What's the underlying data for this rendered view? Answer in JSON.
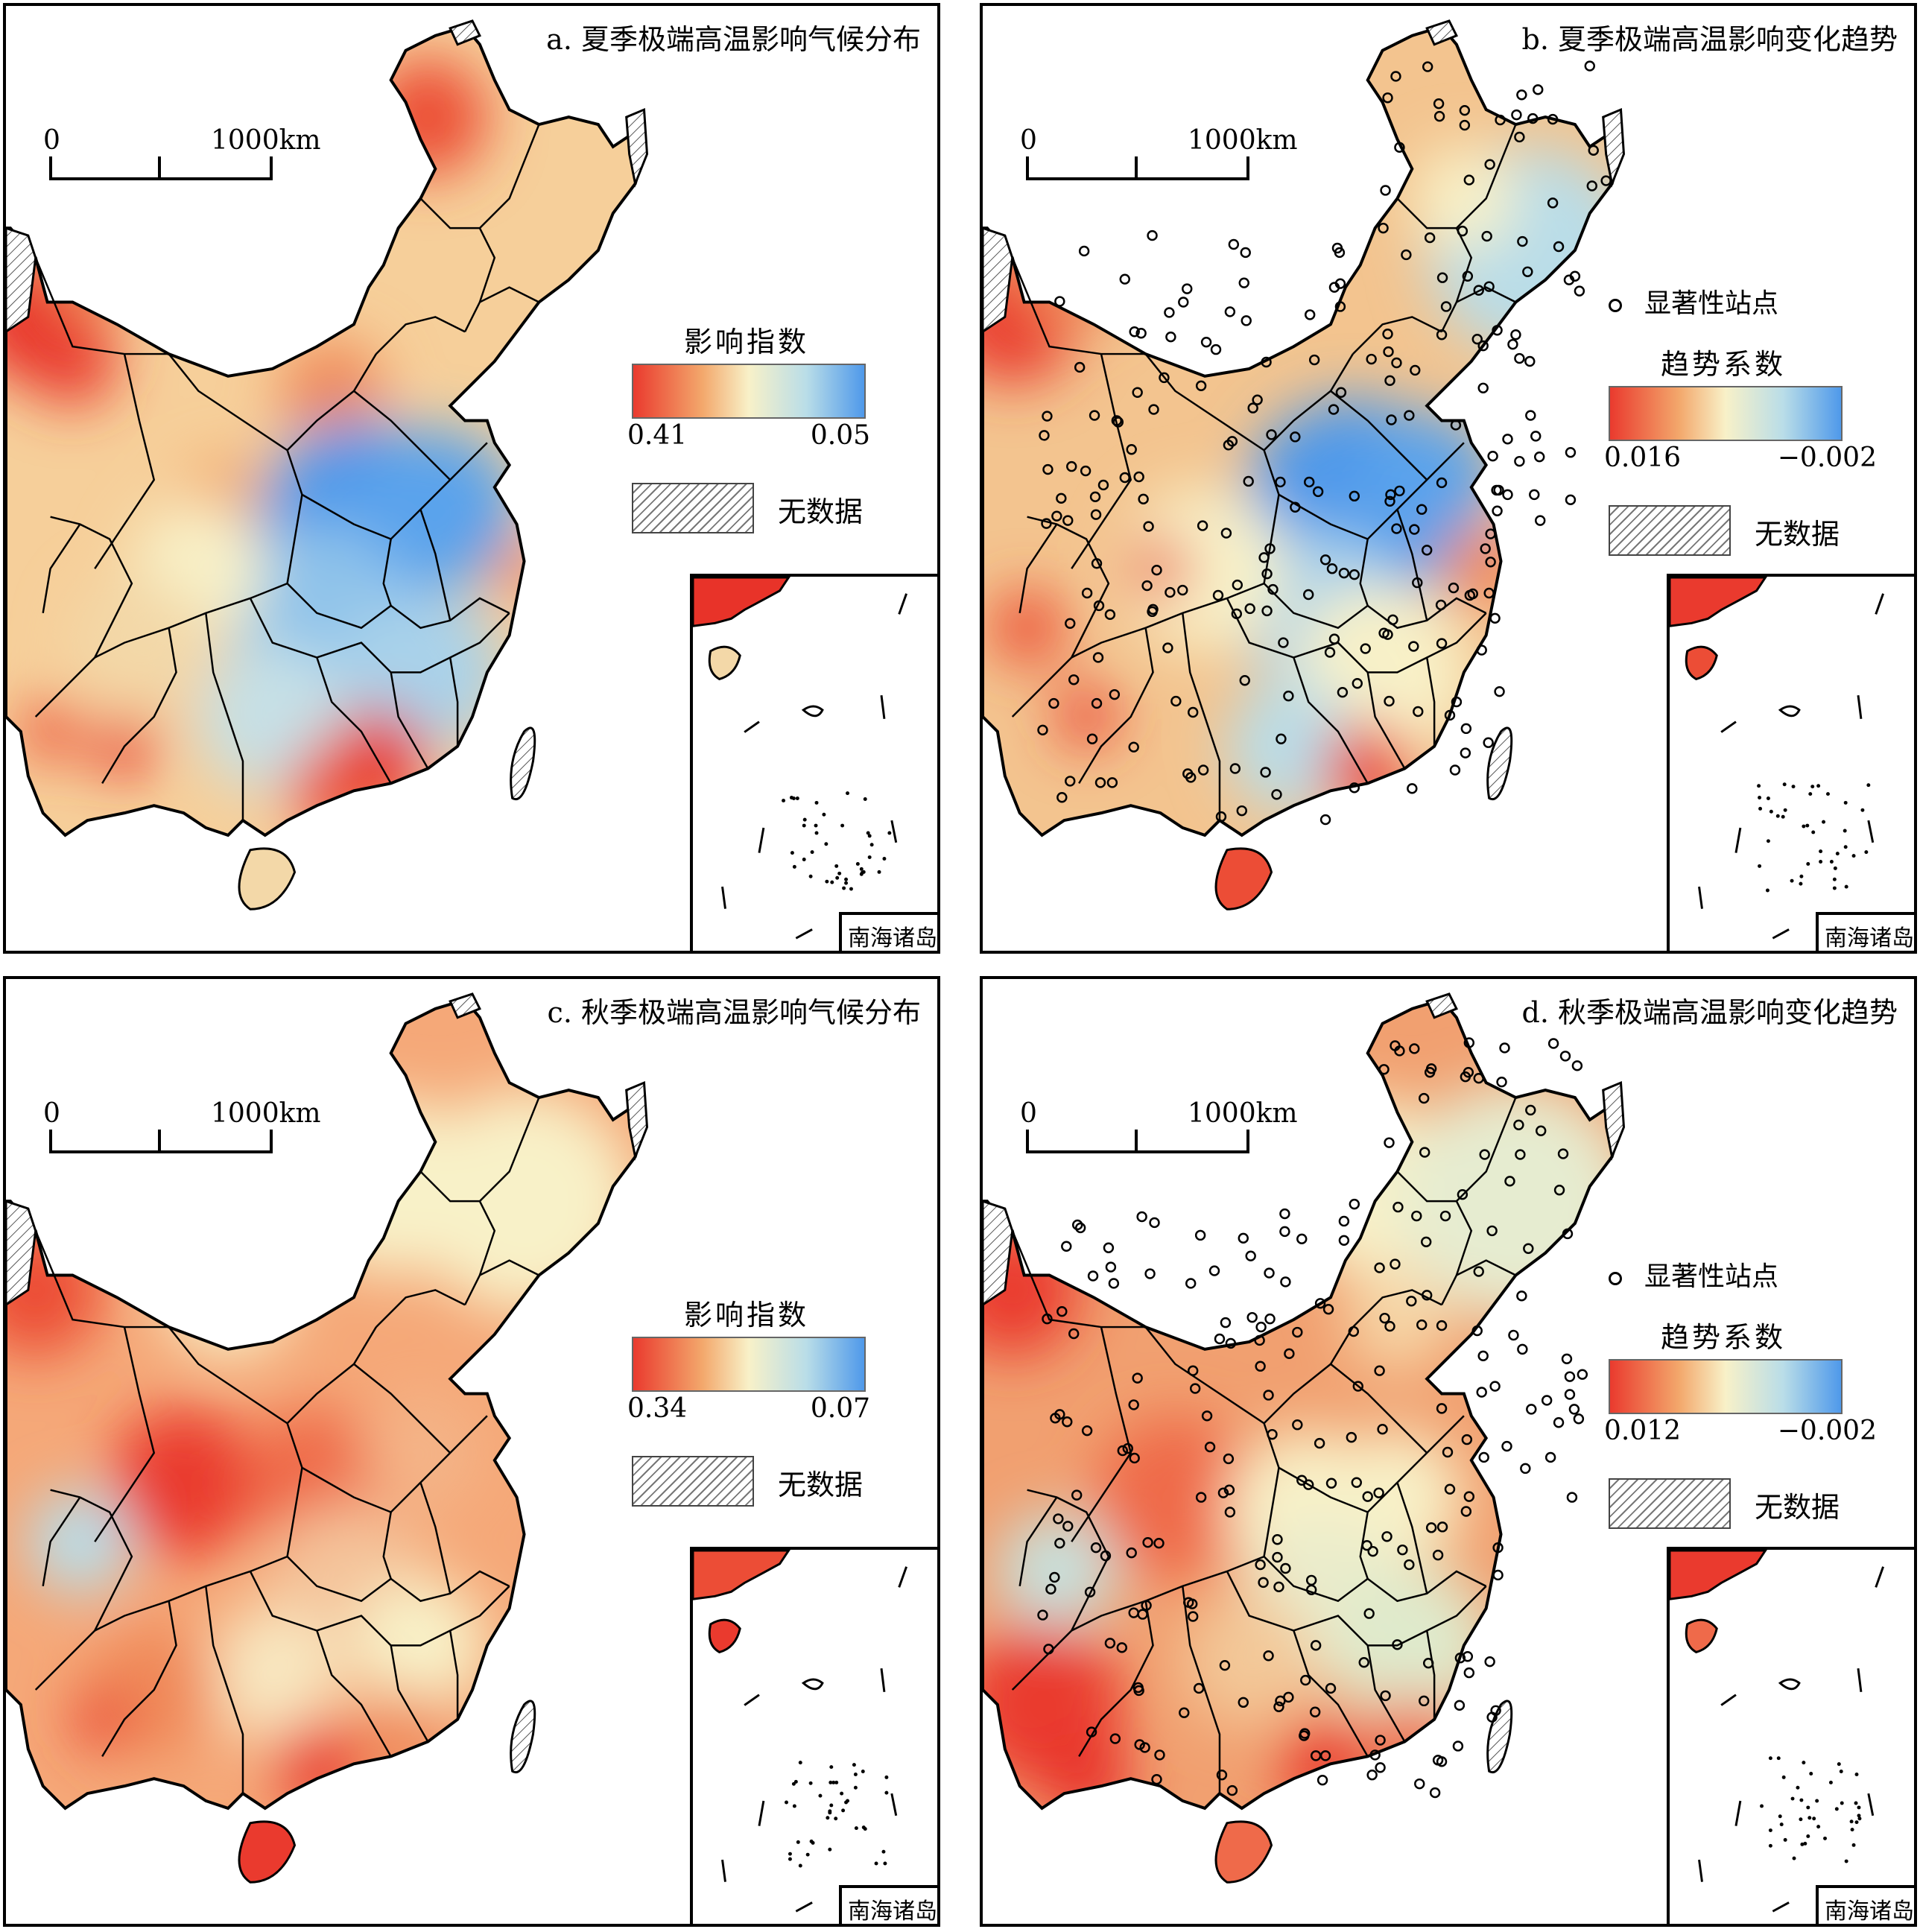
{
  "panels": [
    {
      "id": "a",
      "title": "a. 夏季极端高温影响气候分布",
      "scale": {
        "start": "0",
        "end": "1000km"
      },
      "legend": {
        "significant": "",
        "title": "影响指数",
        "min_label": "0.41",
        "max_label": "0.05",
        "nodata": "无数据"
      },
      "inset_label": "南海诸岛",
      "palette": "summer_climate",
      "stations": false
    },
    {
      "id": "b",
      "title": "b. 夏季极端高温影响变化趋势",
      "scale": {
        "start": "0",
        "end": "1000km"
      },
      "legend": {
        "significant": "显著性站点",
        "title": "趋势系数",
        "min_label": "0.016",
        "max_label": "−0.002",
        "nodata": "无数据"
      },
      "inset_label": "南海诸岛",
      "palette": "summer_trend",
      "stations": true
    },
    {
      "id": "c",
      "title": "c. 秋季极端高温影响气候分布",
      "scale": {
        "start": "0",
        "end": "1000km"
      },
      "legend": {
        "significant": "",
        "title": "影响指数",
        "min_label": "0.34",
        "max_label": "0.07",
        "nodata": "无数据"
      },
      "inset_label": "南海诸岛",
      "palette": "autumn_climate",
      "stations": false
    },
    {
      "id": "d",
      "title": "d. 秋季极端高温影响变化趋势",
      "scale": {
        "start": "0",
        "end": "1000km"
      },
      "legend": {
        "significant": "显著性站点",
        "title": "趋势系数",
        "min_label": "0.012",
        "max_label": "−0.002",
        "nodata": "无数据"
      },
      "inset_label": "南海诸岛",
      "palette": "autumn_trend",
      "stations": true
    }
  ],
  "colors": {
    "hot": "#ea3a2e",
    "warm": "#f3a86c",
    "mid": "#f8f1c8",
    "cool": "#b9dde8",
    "cold": "#4f99ea"
  }
}
